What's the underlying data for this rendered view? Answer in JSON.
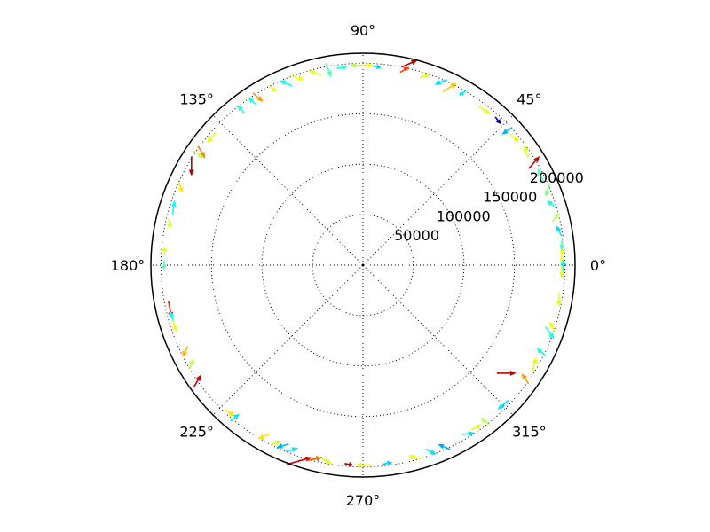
{
  "chart_data": {
    "type": "quiver",
    "projection": "polar",
    "title": "",
    "r_ticks": [
      50000,
      100000,
      150000,
      200000
    ],
    "r_tick_labels": [
      "50000",
      "100000",
      "150000",
      "200000"
    ],
    "theta_ticks_deg": [
      0,
      45,
      90,
      135,
      180,
      225,
      270,
      315
    ],
    "theta_tick_labels": [
      "0°",
      "45°",
      "90°",
      "135°",
      "180°",
      "225°",
      "270°",
      "315°"
    ],
    "r_max": 210000,
    "grid": true,
    "colormap": "jet",
    "arrows": [
      {
        "theta": 0,
        "r": 198000,
        "dx": 0,
        "dy": -14,
        "c": 0.4
      },
      {
        "theta": 3,
        "r": 197000,
        "dx": 2,
        "dy": -16,
        "c": 0.62
      },
      {
        "theta": -2,
        "r": 197000,
        "dx": 0,
        "dy": 14,
        "c": 0.6
      },
      {
        "theta": 6,
        "r": 198000,
        "dx": -1,
        "dy": 15,
        "c": 0.45
      },
      {
        "theta": 10,
        "r": 197000,
        "dx": -6,
        "dy": -12,
        "c": 0.35
      },
      {
        "theta": 14,
        "r": 197000,
        "dx": 8,
        "dy": -10,
        "c": 0.55
      },
      {
        "theta": 18,
        "r": 196000,
        "dx": -10,
        "dy": -9,
        "c": 0.4
      },
      {
        "theta": 22,
        "r": 197000,
        "dx": -4,
        "dy": 14,
        "c": 0.5
      },
      {
        "theta": 27,
        "r": 197000,
        "dx": -6,
        "dy": -14,
        "c": 0.45
      },
      {
        "theta": 31,
        "r": 198000,
        "dx": 12,
        "dy": -14,
        "c": 0.92
      },
      {
        "theta": 35,
        "r": 197000,
        "dx": -4,
        "dy": -14,
        "c": 0.6
      },
      {
        "theta": 40,
        "r": 196000,
        "dx": 10,
        "dy": 8,
        "c": 0.62
      },
      {
        "theta": 43,
        "r": 195000,
        "dx": -12,
        "dy": 8,
        "c": 0.3
      },
      {
        "theta": 47,
        "r": 196000,
        "dx": 6,
        "dy": 8,
        "c": 0.05
      },
      {
        "theta": 52,
        "r": 195000,
        "dx": 14,
        "dy": 10,
        "c": 0.6
      },
      {
        "theta": 60,
        "r": 197000,
        "dx": -8,
        "dy": 6,
        "c": 0.35
      },
      {
        "theta": 64,
        "r": 196000,
        "dx": 16,
        "dy": -10,
        "c": 0.68
      },
      {
        "theta": 67,
        "r": 197000,
        "dx": -14,
        "dy": 6,
        "c": 0.35
      },
      {
        "theta": 72,
        "r": 197000,
        "dx": 10,
        "dy": -4,
        "c": 0.6
      },
      {
        "theta": 77,
        "r": 205000,
        "dx": 18,
        "dy": -8,
        "c": 0.95
      },
      {
        "theta": 78,
        "r": 198000,
        "dx": 10,
        "dy": -6,
        "c": 0.82
      },
      {
        "theta": 86,
        "r": 197000,
        "dx": 10,
        "dy": 2,
        "c": 0.33
      },
      {
        "theta": 89,
        "r": 198000,
        "dx": 16,
        "dy": 0,
        "c": 0.62
      },
      {
        "theta": 92,
        "r": 198000,
        "dx": -14,
        "dy": 0,
        "c": 0.55
      },
      {
        "theta": 96,
        "r": 197000,
        "dx": 12,
        "dy": -2,
        "c": 0.4
      },
      {
        "theta": 100,
        "r": 196000,
        "dx": 6,
        "dy": 16,
        "c": 0.45
      },
      {
        "theta": 104,
        "r": 196000,
        "dx": -14,
        "dy": -4,
        "c": 0.6
      },
      {
        "theta": 109,
        "r": 196000,
        "dx": 12,
        "dy": 4,
        "c": 0.62
      },
      {
        "theta": 113,
        "r": 196000,
        "dx": -14,
        "dy": -6,
        "c": 0.38
      },
      {
        "theta": 117,
        "r": 196000,
        "dx": 8,
        "dy": 6,
        "c": 0.6
      },
      {
        "theta": 122,
        "r": 196000,
        "dx": 12,
        "dy": 10,
        "c": 0.72
      },
      {
        "theta": 124,
        "r": 196000,
        "dx": -10,
        "dy": -8,
        "c": 0.4
      },
      {
        "theta": 128,
        "r": 196000,
        "dx": -8,
        "dy": -10,
        "c": 0.4
      },
      {
        "theta": 140,
        "r": 196000,
        "dx": -10,
        "dy": 12,
        "c": 0.6
      },
      {
        "theta": 145,
        "r": 195000,
        "dx": 8,
        "dy": 14,
        "c": 0.75
      },
      {
        "theta": 146,
        "r": 196000,
        "dx": 12,
        "dy": 8,
        "c": 0.55
      },
      {
        "theta": 150,
        "r": 196000,
        "dx": 0,
        "dy": 22,
        "c": 0.95
      },
      {
        "theta": 157,
        "r": 196000,
        "dx": 4,
        "dy": 12,
        "c": 0.65
      },
      {
        "theta": 163,
        "r": 196000,
        "dx": 2,
        "dy": -16,
        "c": 0.38
      },
      {
        "theta": 168,
        "r": 196000,
        "dx": 2,
        "dy": 12,
        "c": 0.6
      },
      {
        "theta": 176,
        "r": 197000,
        "dx": 0,
        "dy": -10,
        "c": 0.6
      },
      {
        "theta": 180,
        "r": 197000,
        "dx": 0,
        "dy": 10,
        "c": 0.45
      },
      {
        "theta": 193,
        "r": 196000,
        "dx": 4,
        "dy": 20,
        "c": 0.85
      },
      {
        "theta": 195,
        "r": 196000,
        "dx": -4,
        "dy": -12,
        "c": 0.38
      },
      {
        "theta": 198,
        "r": 196000,
        "dx": 4,
        "dy": 14,
        "c": 0.62
      },
      {
        "theta": 206,
        "r": 196000,
        "dx": -6,
        "dy": 12,
        "c": 0.7
      },
      {
        "theta": 210,
        "r": 196000,
        "dx": 6,
        "dy": -12,
        "c": 0.55
      },
      {
        "theta": 215,
        "r": 200000,
        "dx": 8,
        "dy": -14,
        "c": 0.92
      },
      {
        "theta": 228,
        "r": 197000,
        "dx": 12,
        "dy": 8,
        "c": 0.65
      },
      {
        "theta": 230,
        "r": 197000,
        "dx": 10,
        "dy": -8,
        "c": 0.35
      },
      {
        "theta": 240,
        "r": 196000,
        "dx": -14,
        "dy": 6,
        "c": 0.65
      },
      {
        "theta": 244,
        "r": 196000,
        "dx": 12,
        "dy": -4,
        "c": 0.6
      },
      {
        "theta": 246,
        "r": 196000,
        "dx": -14,
        "dy": 4,
        "c": 0.3
      },
      {
        "theta": 249,
        "r": 196000,
        "dx": 14,
        "dy": -4,
        "c": 0.35
      },
      {
        "theta": 252,
        "r": 204000,
        "dx": 28,
        "dy": -8,
        "c": 0.93
      },
      {
        "theta": 256,
        "r": 198000,
        "dx": 18,
        "dy": -4,
        "c": 0.8
      },
      {
        "theta": 259,
        "r": 197000,
        "dx": 16,
        "dy": 8,
        "c": 0.6
      },
      {
        "theta": 266,
        "r": 198000,
        "dx": 10,
        "dy": 2,
        "c": 0.95
      },
      {
        "theta": 270,
        "r": 198000,
        "dx": -16,
        "dy": 0,
        "c": 0.6
      },
      {
        "theta": 277,
        "r": 198000,
        "dx": 12,
        "dy": -2,
        "c": 0.33
      },
      {
        "theta": 285,
        "r": 197000,
        "dx": -14,
        "dy": -4,
        "c": 0.62
      },
      {
        "theta": 290,
        "r": 197000,
        "dx": 12,
        "dy": 6,
        "c": 0.35
      },
      {
        "theta": 294,
        "r": 197000,
        "dx": -14,
        "dy": -6,
        "c": 0.3
      },
      {
        "theta": 302,
        "r": 197000,
        "dx": 14,
        "dy": -2,
        "c": 0.35
      },
      {
        "theta": 305,
        "r": 196000,
        "dx": 12,
        "dy": -6,
        "c": 0.6
      },
      {
        "theta": 308,
        "r": 196000,
        "dx": -10,
        "dy": -8,
        "c": 0.55
      },
      {
        "theta": 315,
        "r": 196000,
        "dx": -12,
        "dy": 10,
        "c": 0.35
      },
      {
        "theta": 323,
        "r": 178000,
        "dx": 22,
        "dy": 0,
        "c": 0.95
      },
      {
        "theta": 325,
        "r": 196000,
        "dx": -8,
        "dy": -12,
        "c": 0.72
      },
      {
        "theta": 330,
        "r": 196000,
        "dx": 4,
        "dy": -16,
        "c": 0.6
      },
      {
        "theta": 334,
        "r": 196000,
        "dx": -10,
        "dy": -8,
        "c": 0.4
      },
      {
        "theta": 340,
        "r": 197000,
        "dx": 10,
        "dy": 14,
        "c": 0.4
      },
      {
        "theta": 342,
        "r": 197000,
        "dx": -6,
        "dy": -12,
        "c": 0.62
      },
      {
        "theta": 350,
        "r": 197000,
        "dx": 0,
        "dy": 16,
        "c": 0.6
      }
    ]
  }
}
